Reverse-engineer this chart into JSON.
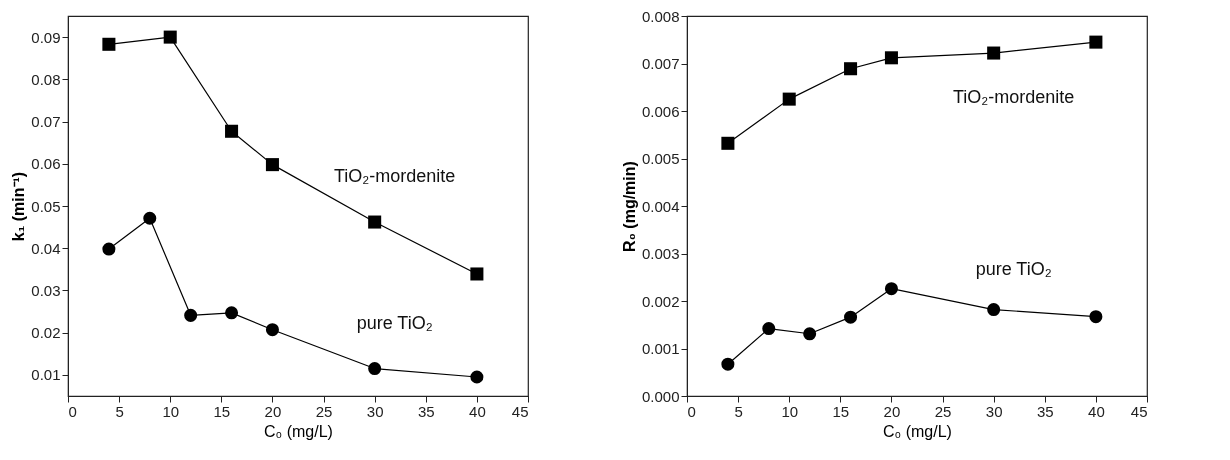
{
  "chart_data": [
    {
      "type": "line",
      "xlabel": "C₀ (mg/L)",
      "ylabel": "k₁ (min⁻¹)",
      "xlim": [
        0,
        45
      ],
      "xticks": [
        0,
        5,
        10,
        15,
        20,
        25,
        30,
        35,
        40,
        45
      ],
      "ylim": [
        0.005,
        0.095
      ],
      "yticks": [
        0.01,
        0.02,
        0.03,
        0.04,
        0.05,
        0.06,
        0.07,
        0.08,
        0.09
      ],
      "grid": false,
      "series": [
        {
          "name": "TiO₂-mordenite",
          "color": "#000000",
          "marker": "square",
          "x": [
            4,
            10,
            16,
            20,
            30,
            40
          ],
          "values": [
            0.0883,
            0.09,
            0.0677,
            0.0598,
            0.0462,
            0.0339
          ]
        },
        {
          "name": "pure TiO₂",
          "color": "#000000",
          "marker": "circle",
          "x": [
            4,
            8,
            12,
            16,
            20,
            30,
            40
          ],
          "values": [
            0.0398,
            0.0471,
            0.0241,
            0.0247,
            0.0207,
            0.0115,
            0.0095
          ]
        }
      ]
    },
    {
      "type": "line",
      "xlabel": "C₀ (mg/L)",
      "ylabel": "R₀ (mg/min)",
      "xlim": [
        0,
        45
      ],
      "xticks": [
        0,
        5,
        10,
        15,
        20,
        25,
        30,
        35,
        40,
        45
      ],
      "ylim": [
        0,
        0.008
      ],
      "yticks": [
        {
          "value": 0,
          "label": "0.000"
        },
        {
          "value": 0.001,
          "label": "0.001"
        },
        {
          "value": 0.002,
          "label": "0.002"
        },
        {
          "value": 0.003,
          "label": "0.003"
        },
        {
          "value": 0.004,
          "label": "0.004"
        },
        {
          "value": 0.005,
          "label": "0.005"
        },
        {
          "value": 0.006,
          "label": "0.006"
        },
        {
          "value": 0.007,
          "label": "0.007"
        },
        {
          "value": 0.008,
          "label": "0.008"
        }
      ],
      "grid": false,
      "series": [
        {
          "name": "TiO₂-mordenite",
          "color": "#000000",
          "marker": "square",
          "x": [
            4,
            10,
            16,
            20,
            30,
            40
          ],
          "values": [
            0.00532,
            0.00625,
            0.00689,
            0.00712,
            0.00722,
            0.00745
          ]
        },
        {
          "name": "pure TiO₂",
          "color": "#000000",
          "marker": "circle",
          "x": [
            4,
            8,
            12,
            16,
            20,
            30,
            40
          ],
          "values": [
            0.00067,
            0.00142,
            0.00131,
            0.00166,
            0.00226,
            0.00182,
            0.00167
          ]
        }
      ]
    }
  ]
}
